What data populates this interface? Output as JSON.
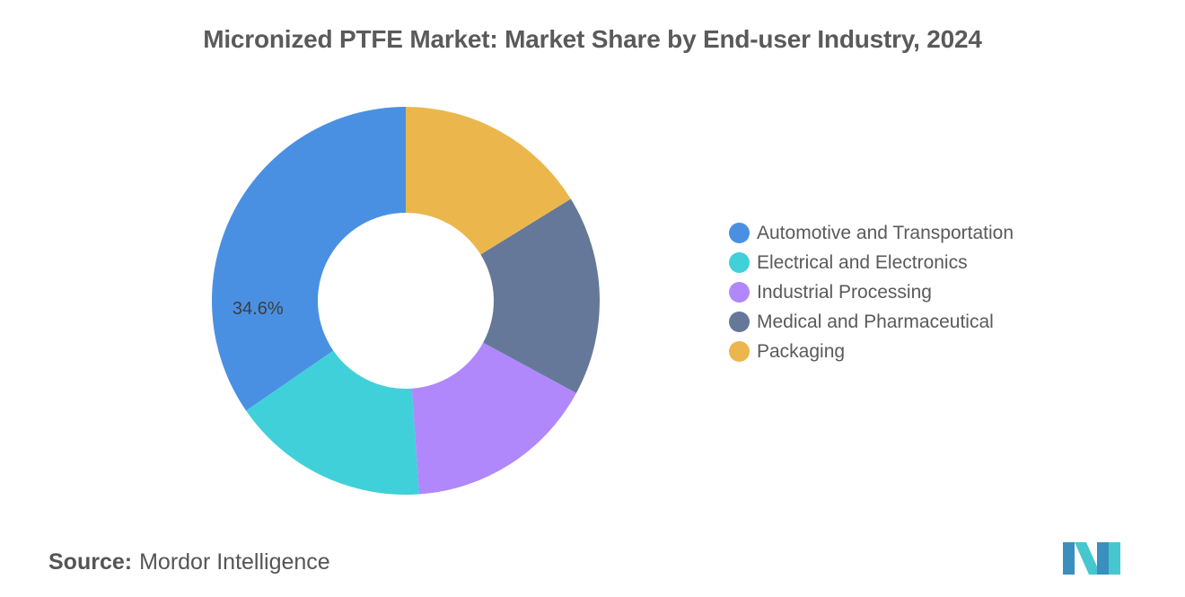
{
  "chart_data": {
    "type": "pie",
    "variant": "donut",
    "title": "Micronized PTFE Market: Market Share by End-user Industry, 2024",
    "slices": [
      {
        "name": "Automotive and Transportation",
        "value": 34.6,
        "color": "#4a90e2",
        "label": "34.6%"
      },
      {
        "name": "Electrical and Electronics",
        "value": 16.5,
        "color": "#40d0da",
        "label": ""
      },
      {
        "name": "Industrial Processing",
        "value": 16.0,
        "color": "#b088fc",
        "label": ""
      },
      {
        "name": "Medical and Pharmaceutical",
        "value": 16.7,
        "color": "#657899",
        "label": ""
      },
      {
        "name": "Packaging",
        "value": 16.2,
        "color": "#ebb74c",
        "label": ""
      }
    ],
    "legend_order": [
      "Automotive and Transportation",
      "Electrical and Electronics",
      "Industrial Processing",
      "Medical and Pharmaceutical",
      "Packaging"
    ],
    "legend_placement": "right"
  },
  "source": {
    "key": "Source:",
    "value": "Mordor Intelligence"
  },
  "logo": {
    "icon": "mordor-intelligence-logo"
  }
}
